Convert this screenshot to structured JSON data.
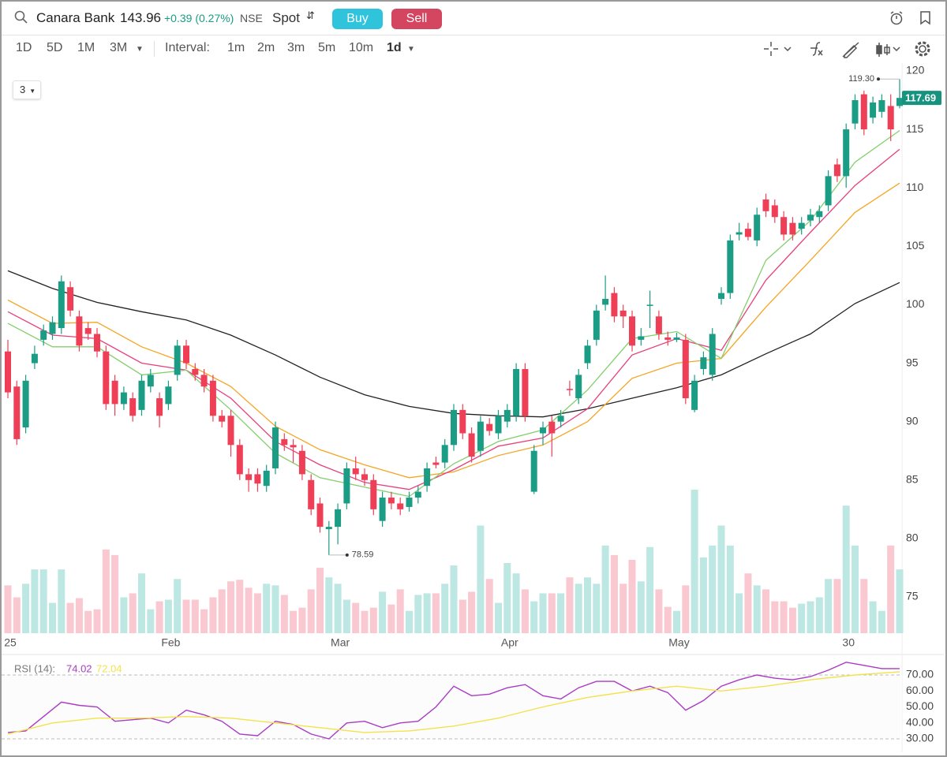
{
  "toolbar": {
    "symbol": "Canara Bank",
    "price": 143.96,
    "change": "+0.39 (0.27%)",
    "exchange": "NSE",
    "segment": "Spot",
    "buy": "Buy",
    "sell": "Sell",
    "ranges": [
      "1D",
      "5D",
      "1M",
      "3M"
    ],
    "interval_label": "Interval:",
    "intervals": [
      "1m",
      "2m",
      "3m",
      "5m",
      "10m",
      "1d"
    ],
    "panel_selector": "3"
  },
  "chart_data": [
    {
      "type": "candlestick",
      "categories": [
        "25",
        null,
        null,
        null,
        null,
        null,
        null,
        null,
        null,
        null,
        null,
        null,
        null,
        null,
        null,
        null,
        null,
        null,
        "Feb",
        null,
        null,
        null,
        null,
        null,
        null,
        null,
        null,
        null,
        null,
        null,
        null,
        null,
        null,
        null,
        null,
        null,
        null,
        "Mar",
        null,
        null,
        null,
        null,
        null,
        null,
        null,
        null,
        null,
        null,
        null,
        null,
        null,
        null,
        null,
        null,
        null,
        null,
        "Apr",
        null,
        null,
        null,
        null,
        null,
        null,
        null,
        null,
        null,
        null,
        null,
        null,
        null,
        null,
        null,
        null,
        null,
        null,
        "May",
        null,
        null,
        null,
        null,
        null,
        null,
        null,
        null,
        null,
        null,
        null,
        null,
        null,
        null,
        null,
        null,
        null,
        null,
        "30",
        null,
        null,
        null,
        null,
        null,
        null
      ],
      "open": [
        96,
        93,
        89.5,
        95,
        97,
        97.5,
        98,
        101.5,
        99,
        98,
        97.5,
        96,
        93.5,
        91.5,
        92,
        91,
        93,
        92,
        91.5,
        94,
        96.5,
        94.5,
        94,
        93.5,
        90.5,
        90.5,
        88,
        85.5,
        85.5,
        84.5,
        86,
        88.5,
        88,
        87.5,
        85,
        83,
        80.8,
        81,
        83,
        86,
        85.5,
        85,
        81.5,
        83.5,
        83,
        82.7,
        83.5,
        84.5,
        86.5,
        86.5,
        88,
        91,
        89,
        87.5,
        89.8,
        89,
        90,
        90.5,
        94.5,
        84,
        89,
        90,
        90,
        92.8,
        92,
        95,
        97,
        100,
        101,
        99.5,
        99,
        97,
        100,
        99,
        97.2,
        97,
        97,
        91,
        94.5,
        94,
        100.5,
        101,
        106,
        106.5,
        105.5,
        109,
        108.5,
        107.5,
        107,
        106.5,
        107.2,
        107.5,
        108.5,
        112,
        111,
        115.5,
        118,
        116,
        116.5,
        117,
        117
      ],
      "high": [
        97,
        93.5,
        94,
        96.5,
        98.3,
        99,
        102.5,
        102,
        99.5,
        98.5,
        98,
        96.5,
        94,
        93,
        92.5,
        94,
        94.5,
        92.5,
        93.5,
        97,
        97,
        95,
        94.5,
        94,
        91,
        91,
        88.5,
        86,
        86,
        86.3,
        90,
        89,
        88.5,
        88,
        85.5,
        83.5,
        81.5,
        83,
        86.5,
        87,
        86,
        85.5,
        84,
        84,
        83.5,
        84,
        84.5,
        86.5,
        87,
        88.5,
        91.5,
        91.5,
        89.5,
        90.5,
        90.3,
        91,
        91.5,
        95,
        95,
        88,
        90,
        90.5,
        91,
        93.5,
        94.5,
        97,
        100,
        102.5,
        101.5,
        100,
        99.5,
        98,
        101.2,
        99.5,
        97.7,
        97.6,
        97.5,
        94,
        96,
        98,
        101.5,
        106,
        107,
        107,
        108.3,
        109.5,
        109,
        108,
        107.5,
        107.5,
        108.2,
        108.5,
        111.5,
        112.5,
        115.5,
        118,
        118.3,
        117.8,
        118,
        118,
        119.3
      ],
      "low": [
        92,
        88,
        89,
        94.5,
        96.5,
        97,
        97.5,
        99,
        96,
        97,
        95.5,
        91,
        90.5,
        91,
        90,
        90.5,
        92.5,
        89.5,
        91,
        93.5,
        94.5,
        93.5,
        92.5,
        90,
        89.5,
        87,
        85,
        84,
        84,
        84,
        85.5,
        87.5,
        86.5,
        85,
        82,
        80.5,
        78.59,
        79.5,
        82.5,
        85,
        84.5,
        82,
        81,
        82.5,
        82,
        82.3,
        83,
        84,
        86,
        86,
        87.5,
        88.5,
        86.5,
        87,
        88.8,
        88.5,
        89.5,
        90,
        90,
        83.8,
        88,
        87,
        89.5,
        92.2,
        91.5,
        94.5,
        96.5,
        99.5,
        98.5,
        98,
        96,
        96.5,
        98,
        97,
        96.5,
        96.8,
        91.5,
        90.8,
        94,
        93.5,
        100,
        100.5,
        105.5,
        105.5,
        105,
        107.5,
        107,
        105.5,
        105.5,
        106,
        106.7,
        107,
        108,
        110.5,
        110,
        115,
        114.5,
        115.5,
        116,
        114,
        116.8
      ],
      "close": [
        92.5,
        88.5,
        93.5,
        95.8,
        97.8,
        98.5,
        102,
        99.5,
        96.5,
        97.5,
        96,
        91.5,
        91.5,
        92.5,
        90.5,
        93.5,
        94,
        90.5,
        93,
        96.5,
        95,
        94,
        93,
        90.5,
        90,
        88,
        85.5,
        85,
        84.7,
        85.8,
        89.5,
        88,
        87.8,
        85.5,
        82.5,
        81,
        81,
        82.5,
        86,
        85.5,
        85,
        82.5,
        83.5,
        83,
        82.5,
        83.5,
        84,
        86,
        86.3,
        88,
        91,
        89,
        87,
        90,
        89.2,
        90.5,
        91,
        94.5,
        90.5,
        87.5,
        89.5,
        89,
        90.5,
        92.7,
        94,
        96.5,
        99.5,
        100.5,
        99,
        99,
        96.5,
        97.3,
        100,
        97.5,
        97,
        97.2,
        92,
        93.5,
        95.5,
        97.5,
        101,
        105.5,
        106.2,
        105.8,
        107.7,
        108,
        107.5,
        106,
        106,
        107,
        107.7,
        108,
        111,
        111,
        115,
        117.5,
        115,
        117.3,
        117.5,
        115,
        117.69
      ],
      "volume": [
        60,
        45,
        62,
        80,
        80,
        38,
        80,
        38,
        44,
        28,
        30,
        105,
        98,
        45,
        50,
        75,
        30,
        40,
        42,
        68,
        42,
        42,
        30,
        45,
        55,
        65,
        67,
        57,
        50,
        62,
        60,
        48,
        28,
        32,
        55,
        82,
        70,
        62,
        42,
        38,
        28,
        32,
        52,
        36,
        55,
        28,
        48,
        50,
        50,
        62,
        85,
        42,
        52,
        135,
        68,
        38,
        88,
        75,
        55,
        40,
        50,
        50,
        50,
        70,
        62,
        70,
        62,
        110,
        98,
        62,
        92,
        65,
        108,
        55,
        33,
        28,
        60,
        180,
        95,
        110,
        135,
        110,
        50,
        75,
        60,
        55,
        40,
        40,
        32,
        37,
        40,
        45,
        68,
        68,
        160,
        110,
        68,
        40,
        28,
        110,
        80
      ],
      "up_color": "#1a9c85",
      "down_color": "#ef3f57",
      "volume_up_color": "#bde7e2",
      "volume_down_color": "#f9c8d0",
      "last_price_color": "#16937e",
      "ylim": [
        71.9,
        120.67
      ],
      "yticks": [
        75,
        80,
        85,
        90,
        95,
        100,
        105,
        110,
        115,
        120
      ],
      "grid": false,
      "annotations": [
        {
          "value": 119.3,
          "label": "119.30"
        },
        {
          "value": 78.59,
          "label": "78.59"
        }
      ],
      "overlay_x": [
        0,
        5,
        10,
        15,
        20,
        25,
        30,
        35,
        40,
        45,
        50,
        55,
        60,
        65,
        70,
        75,
        80,
        85,
        90,
        95,
        100
      ],
      "overlays": [
        {
          "color": "#222222",
          "values": [
            102.9,
            101.4,
            100.2,
            99.4,
            98.7,
            97.4,
            95.7,
            93.8,
            92.3,
            91.3,
            90.7,
            90.5,
            90.4,
            91.1,
            92.0,
            92.9,
            94.0,
            95.8,
            97.5,
            100.1,
            101.9
          ]
        },
        {
          "color": "#f5a524",
          "values": [
            100.4,
            98.4,
            98.5,
            96.4,
            95.0,
            93.0,
            89.6,
            87.6,
            86.3,
            85.2,
            85.7,
            87.1,
            88,
            90,
            93.7,
            95.0,
            95.4,
            99.8,
            103.8,
            107.9,
            110.4
          ]
        },
        {
          "color": "#e83f7c",
          "values": [
            99.4,
            97.4,
            97.1,
            95,
            94.4,
            92,
            88.3,
            86.3,
            84.8,
            84.2,
            85.9,
            87.9,
            88.6,
            91.1,
            95.7,
            97.1,
            96.1,
            102.1,
            106.2,
            110.2,
            113.3
          ]
        },
        {
          "color": "#82cf6c",
          "values": [
            98.4,
            96.4,
            96.4,
            94,
            94.4,
            91,
            87.3,
            85.2,
            84.4,
            83.6,
            86.4,
            88.3,
            89.3,
            92.7,
            97.1,
            97.7,
            95.4,
            103.8,
            107.2,
            112.2,
            114.9
          ]
        }
      ]
    },
    {
      "type": "line",
      "title": "RSI (14):",
      "ylim": [
        22.6,
        77.9
      ],
      "yticks": [
        {
          "value": 30,
          "label": "30.00"
        },
        {
          "value": 40,
          "label": "40.00"
        },
        {
          "value": 50,
          "label": "50.00"
        },
        {
          "value": 60,
          "label": "60.00"
        },
        {
          "value": 70,
          "label": "70.00"
        }
      ],
      "guide_lines": [
        30,
        70
      ],
      "series": [
        {
          "color": "#a93bc4",
          "x": [
            0,
            2,
            4,
            6,
            8,
            10,
            12,
            14,
            16,
            18,
            20,
            22,
            24,
            26,
            28,
            30,
            32,
            34,
            36,
            38,
            40,
            42,
            44,
            46,
            48,
            50,
            52,
            54,
            56,
            58,
            60,
            62,
            64,
            66,
            68,
            70,
            72,
            74,
            76,
            78,
            80,
            82,
            84,
            86,
            88,
            90,
            92,
            94,
            96,
            98,
            100
          ],
          "values": [
            34,
            35,
            44,
            53,
            51,
            50,
            41,
            42,
            43,
            40,
            48,
            45,
            41,
            33,
            32,
            41,
            39,
            33,
            30,
            40,
            41,
            37,
            40,
            41,
            50,
            63,
            57,
            58,
            62,
            64,
            57,
            55,
            62,
            66,
            66,
            60,
            63,
            59,
            48,
            54,
            63,
            67,
            70,
            68,
            67,
            69,
            73,
            78,
            76,
            74,
            74.02
          ]
        },
        {
          "color": "#f3e24c",
          "x": [
            0,
            5,
            10,
            15,
            20,
            25,
            30,
            35,
            40,
            45,
            50,
            55,
            60,
            65,
            70,
            75,
            80,
            85,
            90,
            95,
            100
          ],
          "values": [
            33,
            40,
            43,
            43,
            44,
            43,
            40,
            37,
            34,
            35,
            38,
            43,
            50,
            56,
            60,
            63,
            60,
            63,
            67,
            70,
            72.04
          ]
        }
      ]
    }
  ]
}
